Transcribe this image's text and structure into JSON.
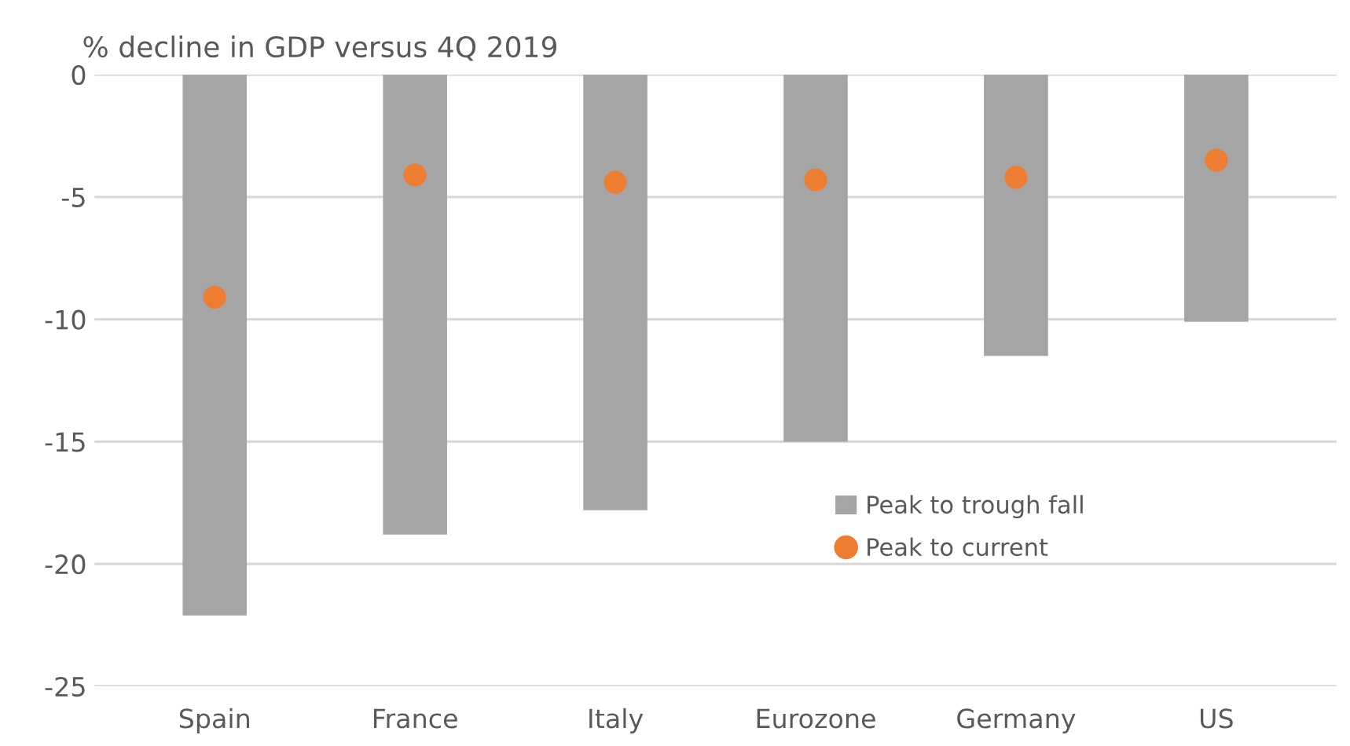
{
  "chart_data": {
    "type": "bar",
    "title": "% decline in GDP versus 4Q 2019",
    "categories": [
      "Spain",
      "France",
      "Italy",
      "Eurozone",
      "Germany",
      "US"
    ],
    "series": [
      {
        "name": "Peak to trough fall",
        "color": "#a5a5a5",
        "values": [
          -22.1,
          -18.8,
          -17.8,
          -15.0,
          -11.5,
          -10.1
        ]
      },
      {
        "name": "Peak to current",
        "type": "scatter",
        "color": "#ed7d31",
        "marker": "circle",
        "values": [
          -9.1,
          -4.1,
          -4.4,
          -4.3,
          -4.2,
          -3.5
        ]
      }
    ],
    "ylim": [
      -25,
      0
    ],
    "yticks": [
      0,
      -5,
      -10,
      -15,
      -20,
      -25
    ],
    "grid": "y",
    "legend": "bottom right"
  }
}
